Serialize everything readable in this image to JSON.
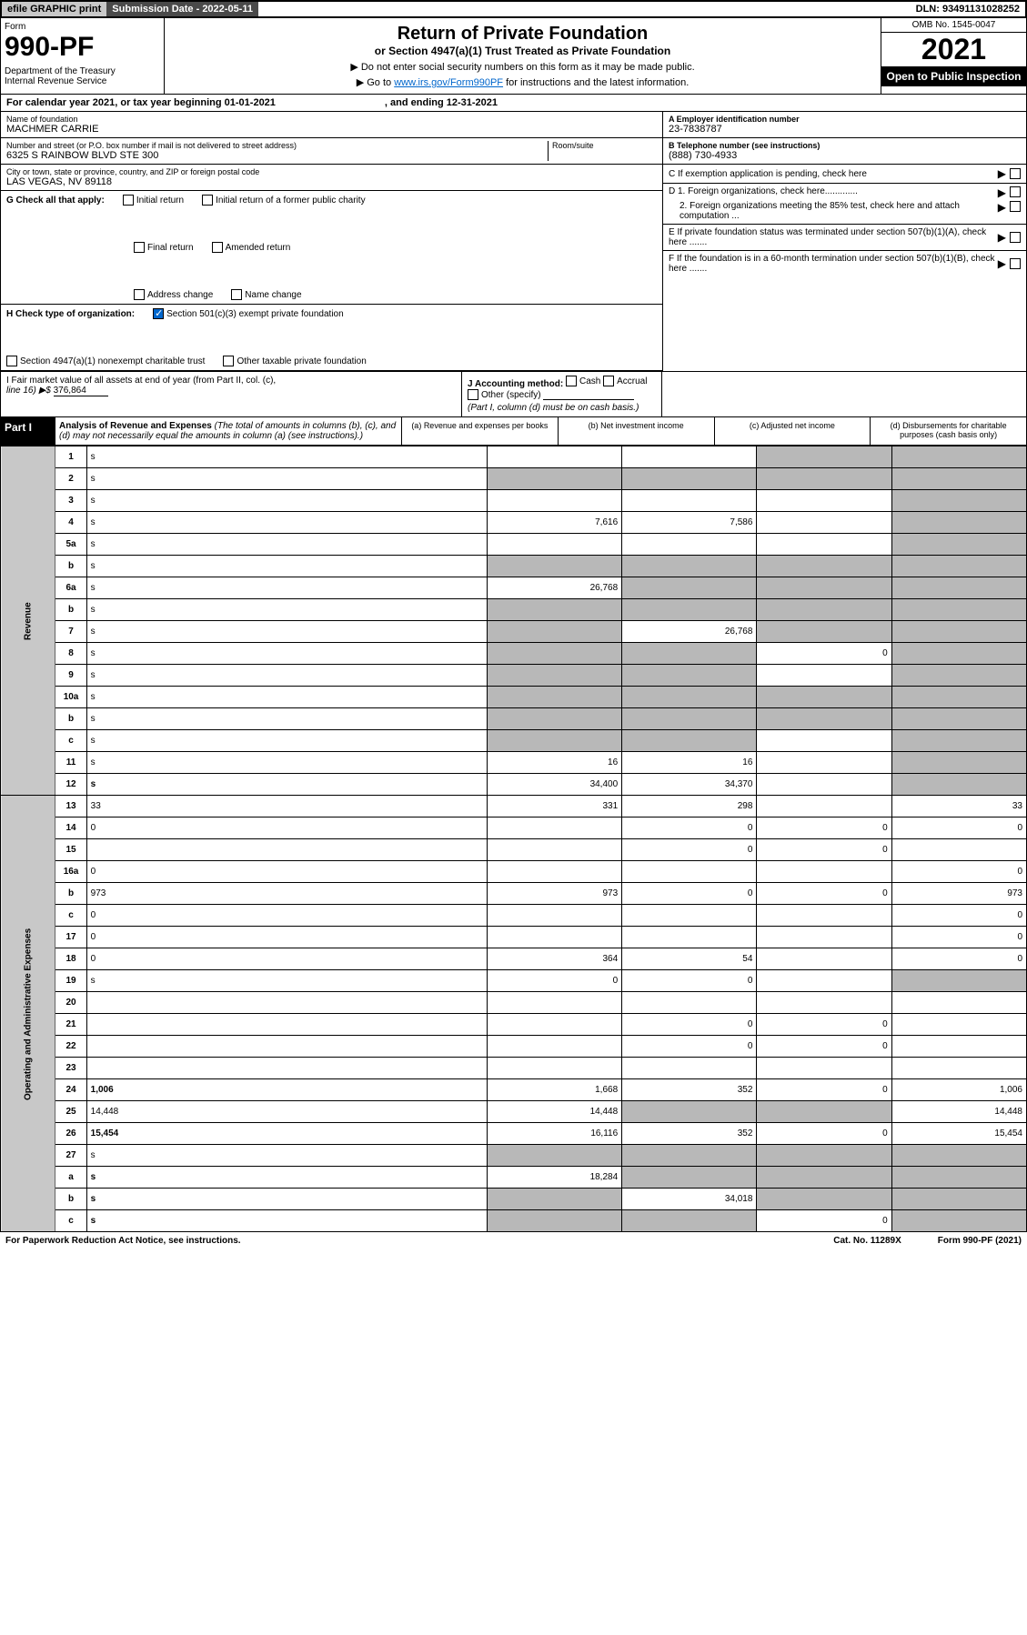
{
  "top": {
    "efile": "efile GRAPHIC print",
    "subdate_label": "Submission Date - 2022-05-11",
    "dln": "DLN: 93491131028252"
  },
  "header": {
    "form_label": "Form",
    "form_num": "990-PF",
    "dept": "Department of the Treasury\nInternal Revenue Service",
    "title1": "Return of Private Foundation",
    "title2": "or Section 4947(a)(1) Trust Treated as Private Foundation",
    "inst1": "▶ Do not enter social security numbers on this form as it may be made public.",
    "inst2_a": "▶ Go to ",
    "inst2_link": "www.irs.gov/Form990PF",
    "inst2_b": " for instructions and the latest information.",
    "omb": "OMB No. 1545-0047",
    "year": "2021",
    "open": "Open to Public Inspection"
  },
  "calyear": {
    "a": "For calendar year 2021, or tax year beginning 01-01-2021",
    "b": ", and ending 12-31-2021"
  },
  "info": {
    "name_label": "Name of foundation",
    "name": "MACHMER CARRIE",
    "addr_label": "Number and street (or P.O. box number if mail is not delivered to street address)",
    "addr": "6325 S RAINBOW BLVD STE 300",
    "room_label": "Room/suite",
    "city_label": "City or town, state or province, country, and ZIP or foreign postal code",
    "city": "LAS VEGAS, NV  89118",
    "ein_label": "A Employer identification number",
    "ein": "23-7838787",
    "tel_label": "B Telephone number (see instructions)",
    "tel": "(888) 730-4933",
    "c_label": "C If exemption application is pending, check here",
    "d1": "D 1. Foreign organizations, check here.............",
    "d2": "2. Foreign organizations meeting the 85% test, check here and attach computation ...",
    "e_label": "E  If private foundation status was terminated under section 507(b)(1)(A), check here .......",
    "f_label": "F  If the foundation is in a 60-month termination under section 507(b)(1)(B), check here .......",
    "g_label": "G Check all that apply:",
    "g_initial": "Initial return",
    "g_initial_former": "Initial return of a former public charity",
    "g_final": "Final return",
    "g_amended": "Amended return",
    "g_addr": "Address change",
    "g_name": "Name change",
    "h_label": "H Check type of organization:",
    "h_501": "Section 501(c)(3) exempt private foundation",
    "h_4947": "Section 4947(a)(1) nonexempt charitable trust",
    "h_other": "Other taxable private foundation",
    "i_label": "I Fair market value of all assets at end of year (from Part II, col. (c),",
    "i_line": "line 16) ▶$",
    "i_val": "376,864",
    "j_label": "J Accounting method:",
    "j_cash": "Cash",
    "j_accrual": "Accrual",
    "j_other": "Other (specify)",
    "j_note": "(Part I, column (d) must be on cash basis.)"
  },
  "part1": {
    "label": "Part I",
    "title": "Analysis of Revenue and Expenses",
    "subtitle": "(The total of amounts in columns (b), (c), and (d) may not necessarily equal the amounts in column (a) (see instructions).)",
    "col_a": "(a)    Revenue and expenses per books",
    "col_b": "(b)    Net investment income",
    "col_c": "(c)    Adjusted net income",
    "col_d": "(d)    Disbursements for charitable purposes (cash basis only)"
  },
  "side": {
    "revenue": "Revenue",
    "expenses": "Operating and Administrative Expenses"
  },
  "rows": [
    {
      "n": "1",
      "d": "s",
      "a": "",
      "b": "",
      "c": "s"
    },
    {
      "n": "2",
      "d": "s",
      "a": "s",
      "b": "s",
      "c": "s"
    },
    {
      "n": "3",
      "d": "s",
      "a": "",
      "b": "",
      "c": ""
    },
    {
      "n": "4",
      "d": "s",
      "a": "7,616",
      "b": "7,586",
      "c": ""
    },
    {
      "n": "5a",
      "d": "s",
      "a": "",
      "b": "",
      "c": ""
    },
    {
      "n": "b",
      "d": "s",
      "a": "s",
      "b": "s",
      "c": "s"
    },
    {
      "n": "6a",
      "d": "s",
      "a": "26,768",
      "b": "s",
      "c": "s"
    },
    {
      "n": "b",
      "d": "s",
      "a": "s",
      "b": "s",
      "c": "s"
    },
    {
      "n": "7",
      "d": "s",
      "a": "s",
      "b": "26,768",
      "c": "s"
    },
    {
      "n": "8",
      "d": "s",
      "a": "s",
      "b": "s",
      "c": "0"
    },
    {
      "n": "9",
      "d": "s",
      "a": "s",
      "b": "s",
      "c": ""
    },
    {
      "n": "10a",
      "d": "s",
      "a": "s",
      "b": "s",
      "c": "s"
    },
    {
      "n": "b",
      "d": "s",
      "a": "s",
      "b": "s",
      "c": "s"
    },
    {
      "n": "c",
      "d": "s",
      "a": "s",
      "b": "s",
      "c": ""
    },
    {
      "n": "11",
      "d": "s",
      "a": "16",
      "b": "16",
      "c": ""
    },
    {
      "n": "12",
      "d": "s",
      "a": "34,400",
      "b": "34,370",
      "c": "",
      "bold": true
    },
    {
      "n": "13",
      "d": "33",
      "a": "331",
      "b": "298",
      "c": ""
    },
    {
      "n": "14",
      "d": "0",
      "a": "",
      "b": "0",
      "c": "0"
    },
    {
      "n": "15",
      "d": "",
      "a": "",
      "b": "0",
      "c": "0"
    },
    {
      "n": "16a",
      "d": "0",
      "a": "",
      "b": "",
      "c": ""
    },
    {
      "n": "b",
      "d": "973",
      "a": "973",
      "b": "0",
      "c": "0"
    },
    {
      "n": "c",
      "d": "0",
      "a": "",
      "b": "",
      "c": ""
    },
    {
      "n": "17",
      "d": "0",
      "a": "",
      "b": "",
      "c": ""
    },
    {
      "n": "18",
      "d": "0",
      "a": "364",
      "b": "54",
      "c": ""
    },
    {
      "n": "19",
      "d": "s",
      "a": "0",
      "b": "0",
      "c": ""
    },
    {
      "n": "20",
      "d": "",
      "a": "",
      "b": "",
      "c": ""
    },
    {
      "n": "21",
      "d": "",
      "a": "",
      "b": "0",
      "c": "0"
    },
    {
      "n": "22",
      "d": "",
      "a": "",
      "b": "0",
      "c": "0"
    },
    {
      "n": "23",
      "d": "",
      "a": "",
      "b": "",
      "c": ""
    },
    {
      "n": "24",
      "d": "1,006",
      "a": "1,668",
      "b": "352",
      "c": "0",
      "bold": true
    },
    {
      "n": "25",
      "d": "14,448",
      "a": "14,448",
      "b": "s",
      "c": "s"
    },
    {
      "n": "26",
      "d": "15,454",
      "a": "16,116",
      "b": "352",
      "c": "0",
      "bold": true
    },
    {
      "n": "27",
      "d": "s",
      "a": "s",
      "b": "s",
      "c": "s"
    },
    {
      "n": "a",
      "d": "s",
      "a": "18,284",
      "b": "s",
      "c": "s",
      "bold": true
    },
    {
      "n": "b",
      "d": "s",
      "a": "s",
      "b": "34,018",
      "c": "s",
      "bold": true
    },
    {
      "n": "c",
      "d": "s",
      "a": "s",
      "b": "s",
      "c": "0",
      "bold": true
    }
  ],
  "footer": {
    "left": "For Paperwork Reduction Act Notice, see instructions.",
    "mid": "Cat. No. 11289X",
    "right": "Form 990-PF (2021)"
  }
}
